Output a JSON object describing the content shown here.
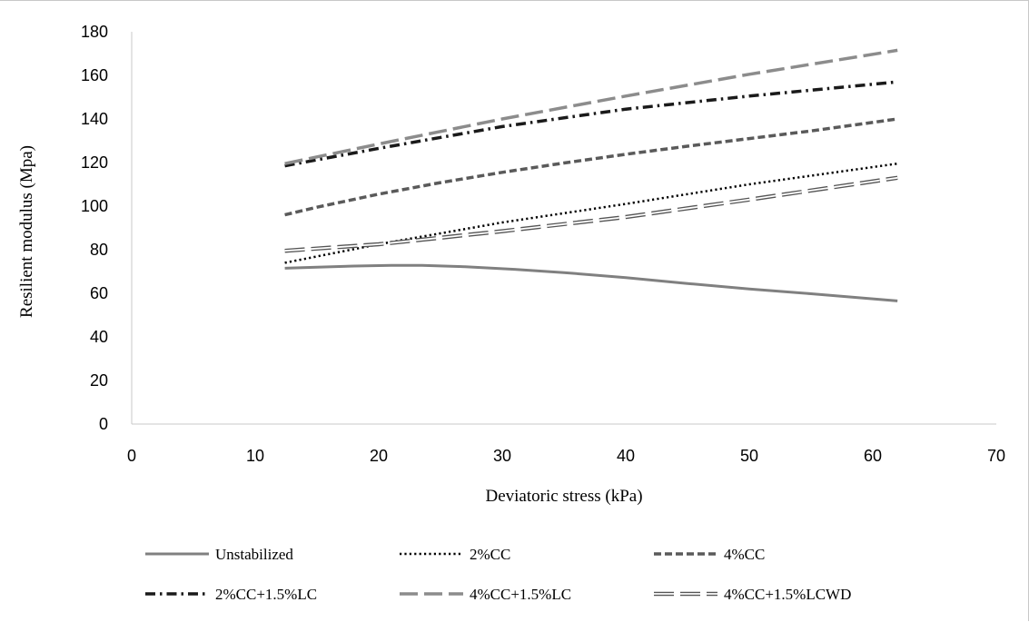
{
  "chart_data": {
    "type": "line",
    "title": "",
    "xlabel": "Deviatoric stress (kPa)",
    "ylabel": "Resilient modulus (Mpa)",
    "xlim": [
      0,
      70
    ],
    "ylim": [
      0,
      180
    ],
    "xticks": [
      0,
      10,
      20,
      30,
      40,
      50,
      60,
      70
    ],
    "yticks": [
      0,
      20,
      40,
      60,
      80,
      100,
      120,
      140,
      160,
      180
    ],
    "grid": false,
    "legend_position": "bottom",
    "series": [
      {
        "name": "Unstabilized",
        "color": "#808080",
        "style": "solid",
        "x": [
          12.4,
          15,
          18,
          21,
          23.5,
          27,
          31,
          35,
          40,
          45,
          50,
          55,
          62
        ],
        "y": [
          71.5,
          72,
          72.5,
          72.8,
          72.8,
          72.2,
          71,
          69.5,
          67.2,
          64.5,
          62,
          59.8,
          56.5
        ]
      },
      {
        "name": "2%CC",
        "color": "#000000",
        "style": "dotted",
        "x": [
          12.4,
          20,
          30,
          40,
          50,
          62
        ],
        "y": [
          74,
          82.5,
          92.5,
          101,
          110,
          119.5
        ]
      },
      {
        "name": "4%CC",
        "color": "#5a5a5a",
        "style": "dashed",
        "x": [
          12.4,
          15,
          20,
          25,
          30,
          35,
          40,
          45,
          50,
          55,
          62
        ],
        "y": [
          96,
          99.5,
          105.5,
          110.8,
          115.5,
          119.8,
          123.8,
          127.5,
          131,
          134.5,
          140
        ]
      },
      {
        "name": "2%CC+1.5%LC",
        "color": "#1a1a1a",
        "style": "dashdot",
        "x": [
          12.4,
          20,
          30,
          40,
          50,
          62
        ],
        "y": [
          118.5,
          126.5,
          136.5,
          144.5,
          150.5,
          157
        ]
      },
      {
        "name": "4%CC+1.5%LC",
        "color": "#8c8c8c",
        "style": "longdash",
        "x": [
          12.4,
          20,
          30,
          40,
          50,
          62
        ],
        "y": [
          119.5,
          128.5,
          140,
          150.5,
          160.5,
          171.5
        ]
      },
      {
        "name": "4%CC+1.5%LCWD",
        "color": "#555555",
        "style": "double",
        "x": [
          12.4,
          20,
          30,
          40,
          50,
          62
        ],
        "y": [
          79.5,
          82.5,
          88.5,
          95,
          103,
          113
        ]
      }
    ]
  }
}
